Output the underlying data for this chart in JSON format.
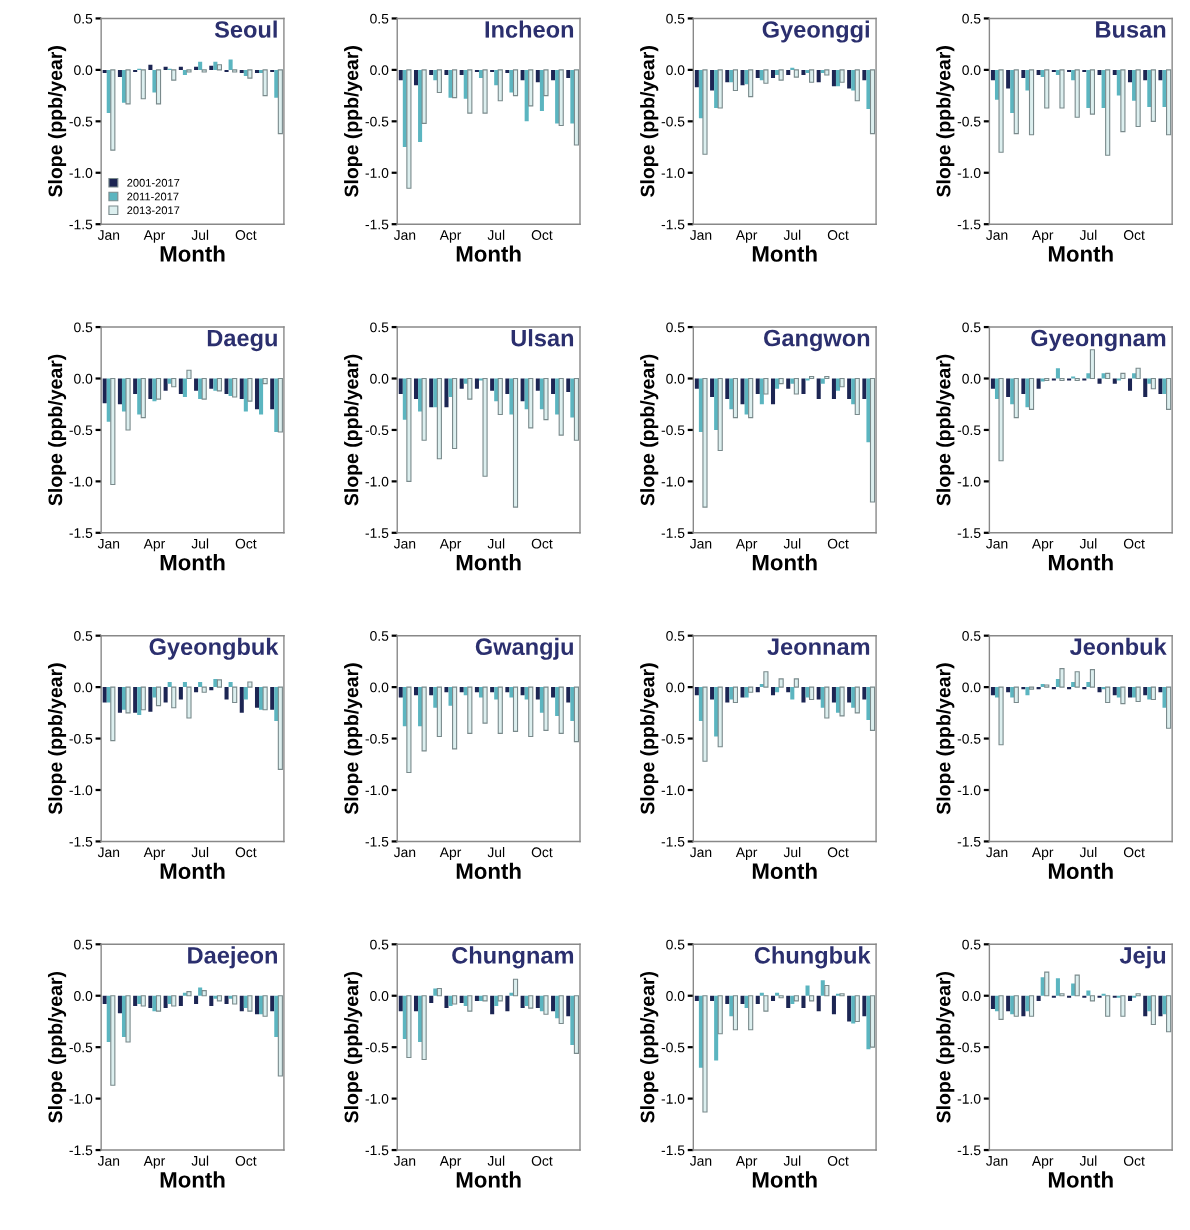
{
  "chart_data": [
    {
      "type": "bar",
      "title": "Seoul",
      "xlabel": "Month",
      "ylabel": "Slope (ppb/year)",
      "categories": [
        "Jan",
        null,
        null,
        "Apr",
        null,
        null,
        "Jul",
        null,
        null,
        "Oct",
        null,
        null
      ],
      "ylim": [
        -1.5,
        0.5
      ],
      "yticks": [
        {
          "value": -1.5,
          "label": "-1.5"
        },
        {
          "value": -1.0,
          "label": "-1.0"
        },
        {
          "value": -0.5,
          "label": "-0.5"
        },
        {
          "value": 0.0,
          "label": "0.0"
        },
        {
          "value": 0.5,
          "label": "0.5"
        }
      ],
      "legend": "bottom left",
      "series": [
        {
          "name": "2001-2017",
          "color": "#1c2553",
          "values": [
            -0.03,
            -0.07,
            -0.02,
            0.05,
            0.03,
            0.03,
            0.03,
            0.04,
            -0.02,
            -0.03,
            -0.03,
            -0.02
          ]
        },
        {
          "name": "2011-2017",
          "color": "#5bb5c0",
          "values": [
            -0.42,
            -0.32,
            0.01,
            -0.22,
            0.01,
            -0.05,
            0.08,
            0.08,
            0.1,
            -0.06,
            -0.03,
            -0.27
          ]
        },
        {
          "name": "2013-2017",
          "color": "#dcefef",
          "values": [
            -0.78,
            -0.33,
            -0.28,
            -0.33,
            -0.1,
            -0.02,
            -0.02,
            0.05,
            -0.02,
            -0.08,
            -0.25,
            -0.62
          ]
        }
      ]
    },
    {
      "type": "bar",
      "title": "Incheon",
      "xlabel": "Month",
      "ylabel": "Slope (ppb/year)",
      "categories": [
        "Jan",
        null,
        null,
        "Apr",
        null,
        null,
        "Jul",
        null,
        null,
        "Oct",
        null,
        null
      ],
      "ylim": [
        -1.5,
        0.5
      ],
      "yticks": [
        {
          "value": -1.5,
          "label": "-1.5"
        },
        {
          "value": -1.0,
          "label": "-1.0"
        },
        {
          "value": -0.5,
          "label": "-0.5"
        },
        {
          "value": 0.0,
          "label": "0.0"
        },
        {
          "value": 0.5,
          "label": "0.5"
        }
      ],
      "series": [
        {
          "color": "#1c2553",
          "values": [
            -0.1,
            -0.15,
            -0.05,
            -0.05,
            -0.05,
            -0.02,
            -0.02,
            -0.03,
            -0.1,
            -0.12,
            -0.1,
            -0.08
          ]
        },
        {
          "color": "#5bb5c0",
          "values": [
            -0.75,
            -0.7,
            -0.1,
            -0.27,
            -0.28,
            -0.08,
            -0.15,
            -0.22,
            -0.5,
            -0.4,
            -0.52,
            -0.52
          ]
        },
        {
          "color": "#dcefef",
          "values": [
            -1.15,
            -0.52,
            -0.22,
            -0.27,
            -0.42,
            -0.42,
            -0.3,
            -0.25,
            -0.35,
            -0.25,
            -0.54,
            -0.73
          ]
        }
      ]
    },
    {
      "type": "bar",
      "title": "Gyeonggi",
      "xlabel": "Month",
      "ylabel": "Slope (ppb/year)",
      "categories": [
        "Jan",
        null,
        null,
        "Apr",
        null,
        null,
        "Jul",
        null,
        null,
        "Oct",
        null,
        null
      ],
      "ylim": [
        -1.5,
        0.5
      ],
      "yticks": [
        {
          "value": -1.5,
          "label": "-1.5"
        },
        {
          "value": -1.0,
          "label": "-1.0"
        },
        {
          "value": -0.5,
          "label": "-0.5"
        },
        {
          "value": 0.0,
          "label": "0.0"
        },
        {
          "value": 0.5,
          "label": "0.5"
        }
      ],
      "series": [
        {
          "color": "#1c2553",
          "values": [
            -0.17,
            -0.2,
            -0.12,
            -0.15,
            -0.08,
            -0.08,
            -0.05,
            -0.05,
            -0.12,
            -0.16,
            -0.18,
            -0.1
          ]
        },
        {
          "color": "#5bb5c0",
          "values": [
            -0.47,
            -0.37,
            -0.12,
            -0.14,
            -0.1,
            -0.05,
            0.02,
            -0.03,
            -0.03,
            -0.16,
            -0.2,
            -0.38
          ]
        },
        {
          "color": "#dcefef",
          "values": [
            -0.82,
            -0.37,
            -0.2,
            -0.26,
            -0.13,
            -0.1,
            -0.07,
            -0.12,
            -0.05,
            -0.12,
            -0.3,
            -0.62
          ]
        }
      ]
    },
    {
      "type": "bar",
      "title": "Busan",
      "xlabel": "Month",
      "ylabel": "Slope (ppb/year)",
      "categories": [
        "Jan",
        null,
        null,
        "Apr",
        null,
        null,
        "Jul",
        null,
        null,
        "Oct",
        null,
        null
      ],
      "ylim": [
        -1.5,
        0.5
      ],
      "yticks": [
        {
          "value": -1.5,
          "label": "-1.5"
        },
        {
          "value": -1.0,
          "label": "-1.0"
        },
        {
          "value": -0.5,
          "label": "-0.5"
        },
        {
          "value": 0.0,
          "label": "0.0"
        },
        {
          "value": 0.5,
          "label": "0.5"
        }
      ],
      "series": [
        {
          "color": "#1c2553",
          "values": [
            -0.1,
            -0.18,
            -0.08,
            -0.05,
            -0.02,
            -0.02,
            -0.02,
            -0.05,
            -0.05,
            -0.12,
            -0.1,
            -0.1
          ]
        },
        {
          "color": "#5bb5c0",
          "values": [
            -0.29,
            -0.42,
            -0.2,
            -0.07,
            -0.05,
            -0.1,
            -0.37,
            -0.37,
            -0.25,
            -0.3,
            -0.36,
            -0.36
          ]
        },
        {
          "color": "#dcefef",
          "values": [
            -0.8,
            -0.62,
            -0.63,
            -0.37,
            -0.37,
            -0.46,
            -0.43,
            -0.83,
            -0.6,
            -0.55,
            -0.5,
            -0.63
          ]
        }
      ]
    },
    {
      "type": "bar",
      "title": "Daegu",
      "xlabel": "Month",
      "ylabel": "Slope (ppb/year)",
      "categories": [
        "Jan",
        null,
        null,
        "Apr",
        null,
        null,
        "Jul",
        null,
        null,
        "Oct",
        null,
        null
      ],
      "ylim": [
        -1.5,
        0.5
      ],
      "yticks": [
        {
          "value": -1.5,
          "label": "-1.5"
        },
        {
          "value": -1.0,
          "label": "-1.0"
        },
        {
          "value": -0.5,
          "label": "-0.5"
        },
        {
          "value": 0.0,
          "label": "0.0"
        },
        {
          "value": 0.5,
          "label": "0.5"
        }
      ],
      "series": [
        {
          "color": "#1c2553",
          "values": [
            -0.24,
            -0.25,
            -0.15,
            -0.2,
            -0.12,
            -0.15,
            -0.12,
            -0.1,
            -0.15,
            -0.2,
            -0.3,
            -0.3
          ]
        },
        {
          "color": "#5bb5c0",
          "values": [
            -0.42,
            -0.32,
            -0.35,
            -0.22,
            -0.05,
            -0.18,
            -0.2,
            -0.12,
            -0.17,
            -0.32,
            -0.35,
            -0.52
          ]
        },
        {
          "color": "#dcefef",
          "values": [
            -1.03,
            -0.5,
            -0.38,
            -0.2,
            -0.08,
            0.08,
            -0.2,
            -0.12,
            -0.18,
            -0.22,
            -0.05,
            -0.52
          ]
        }
      ]
    },
    {
      "type": "bar",
      "title": "Ulsan",
      "xlabel": "Month",
      "ylabel": "Slope (ppb/year)",
      "categories": [
        "Jan",
        null,
        null,
        "Apr",
        null,
        null,
        "Jul",
        null,
        null,
        "Oct",
        null,
        null
      ],
      "ylim": [
        -1.5,
        0.5
      ],
      "yticks": [
        {
          "value": -1.5,
          "label": "-1.5"
        },
        {
          "value": -1.0,
          "label": "-1.0"
        },
        {
          "value": -0.5,
          "label": "-0.5"
        },
        {
          "value": 0.0,
          "label": "0.0"
        },
        {
          "value": 0.5,
          "label": "0.5"
        }
      ],
      "series": [
        {
          "color": "#1c2553",
          "values": [
            -0.15,
            -0.2,
            -0.28,
            -0.28,
            -0.1,
            -0.1,
            -0.12,
            -0.15,
            -0.22,
            -0.12,
            -0.15,
            -0.13
          ]
        },
        {
          "color": "#5bb5c0",
          "values": [
            -0.4,
            -0.32,
            -0.28,
            -0.18,
            -0.05,
            -0.02,
            -0.22,
            -0.35,
            -0.3,
            -0.3,
            -0.35,
            -0.38
          ]
        },
        {
          "color": "#dcefef",
          "values": [
            -1.0,
            -0.6,
            -0.78,
            -0.68,
            -0.2,
            -0.95,
            -0.35,
            -1.25,
            -0.48,
            -0.4,
            -0.55,
            -0.6
          ]
        }
      ]
    },
    {
      "type": "bar",
      "title": "Gangwon",
      "xlabel": "Month",
      "ylabel": "Slope (ppb/year)",
      "categories": [
        "Jan",
        null,
        null,
        "Apr",
        null,
        null,
        "Jul",
        null,
        null,
        "Oct",
        null,
        null
      ],
      "ylim": [
        -1.5,
        0.5
      ],
      "yticks": [
        {
          "value": -1.5,
          "label": "-1.5"
        },
        {
          "value": -1.0,
          "label": "-1.0"
        },
        {
          "value": -0.5,
          "label": "-0.5"
        },
        {
          "value": 0.0,
          "label": "0.0"
        },
        {
          "value": 0.5,
          "label": "0.5"
        }
      ],
      "series": [
        {
          "color": "#1c2553",
          "values": [
            -0.1,
            -0.18,
            -0.2,
            -0.25,
            -0.15,
            -0.25,
            -0.1,
            -0.15,
            -0.2,
            -0.2,
            -0.2,
            -0.2
          ]
        },
        {
          "color": "#5bb5c0",
          "values": [
            -0.52,
            -0.5,
            -0.3,
            -0.35,
            -0.25,
            -0.1,
            -0.05,
            -0.02,
            -0.05,
            -0.12,
            -0.25,
            -0.62
          ]
        },
        {
          "color": "#dcefef",
          "values": [
            -1.25,
            -0.7,
            -0.38,
            -0.38,
            -0.15,
            -0.05,
            -0.15,
            0.02,
            0.02,
            -0.08,
            -0.35,
            -1.2
          ]
        }
      ]
    },
    {
      "type": "bar",
      "title": "Gyeongnam",
      "xlabel": "Month",
      "ylabel": "Slope (ppb/year)",
      "categories": [
        "Jan",
        null,
        null,
        "Apr",
        null,
        null,
        "Jul",
        null,
        null,
        "Oct",
        null,
        null
      ],
      "ylim": [
        -1.5,
        0.5
      ],
      "yticks": [
        {
          "value": -1.5,
          "label": "-1.5"
        },
        {
          "value": -1.0,
          "label": "-1.0"
        },
        {
          "value": -0.5,
          "label": "-0.5"
        },
        {
          "value": 0.0,
          "label": "0.0"
        },
        {
          "value": 0.5,
          "label": "0.5"
        }
      ],
      "series": [
        {
          "color": "#1c2553",
          "values": [
            -0.1,
            -0.18,
            -0.15,
            -0.1,
            -0.02,
            -0.02,
            -0.02,
            -0.05,
            -0.05,
            -0.12,
            -0.18,
            -0.15
          ]
        },
        {
          "color": "#5bb5c0",
          "values": [
            -0.2,
            -0.25,
            -0.28,
            -0.03,
            0.1,
            0.02,
            0.05,
            0.05,
            -0.02,
            0.05,
            -0.05,
            -0.15
          ]
        },
        {
          "color": "#dcefef",
          "values": [
            -0.8,
            -0.38,
            -0.3,
            -0.02,
            -0.02,
            -0.02,
            0.28,
            0.05,
            0.05,
            0.1,
            -0.1,
            -0.3
          ]
        }
      ]
    },
    {
      "type": "bar",
      "title": "Gyeongbuk",
      "xlabel": "Month",
      "ylabel": "Slope (ppb/year)",
      "categories": [
        "Jan",
        null,
        null,
        "Apr",
        null,
        null,
        "Jul",
        null,
        null,
        "Oct",
        null,
        null
      ],
      "ylim": [
        -1.5,
        0.5
      ],
      "yticks": [
        {
          "value": -1.5,
          "label": "-1.5"
        },
        {
          "value": -1.0,
          "label": "-1.0"
        },
        {
          "value": -0.5,
          "label": "-0.5"
        },
        {
          "value": 0.0,
          "label": "0.0"
        },
        {
          "value": 0.5,
          "label": "0.5"
        }
      ],
      "series": [
        {
          "color": "#1c2553",
          "values": [
            -0.15,
            -0.25,
            -0.25,
            -0.24,
            -0.15,
            -0.12,
            -0.05,
            -0.03,
            -0.12,
            -0.25,
            -0.2,
            -0.22
          ]
        },
        {
          "color": "#5bb5c0",
          "values": [
            -0.15,
            -0.22,
            -0.27,
            -0.1,
            0.05,
            0.05,
            0.05,
            0.08,
            0.05,
            -0.12,
            -0.22,
            -0.33
          ]
        },
        {
          "color": "#dcefef",
          "values": [
            -0.52,
            -0.25,
            -0.22,
            -0.18,
            -0.2,
            -0.3,
            -0.05,
            0.07,
            -0.15,
            0.05,
            -0.22,
            -0.8
          ]
        }
      ]
    },
    {
      "type": "bar",
      "title": "Gwangju",
      "xlabel": "Month",
      "ylabel": "Slope (ppb/year)",
      "categories": [
        "Jan",
        null,
        null,
        "Apr",
        null,
        null,
        "Jul",
        null,
        null,
        "Oct",
        null,
        null
      ],
      "ylim": [
        -1.5,
        0.5
      ],
      "yticks": [
        {
          "value": -1.5,
          "label": "-1.5"
        },
        {
          "value": -1.0,
          "label": "-1.0"
        },
        {
          "value": -0.5,
          "label": "-0.5"
        },
        {
          "value": 0.0,
          "label": "0.0"
        },
        {
          "value": 0.5,
          "label": "0.5"
        }
      ],
      "series": [
        {
          "color": "#1c2553",
          "values": [
            -0.1,
            -0.08,
            -0.08,
            -0.05,
            -0.05,
            -0.05,
            -0.05,
            -0.05,
            -0.08,
            -0.12,
            -0.1,
            -0.15
          ]
        },
        {
          "color": "#5bb5c0",
          "values": [
            -0.38,
            -0.38,
            -0.2,
            -0.18,
            -0.08,
            -0.1,
            -0.12,
            -0.1,
            -0.12,
            -0.25,
            -0.28,
            -0.33
          ]
        },
        {
          "color": "#dcefef",
          "values": [
            -0.83,
            -0.62,
            -0.48,
            -0.6,
            -0.45,
            -0.35,
            -0.45,
            -0.43,
            -0.48,
            -0.42,
            -0.45,
            -0.53
          ]
        }
      ]
    },
    {
      "type": "bar",
      "title": "Jeonnam",
      "xlabel": "Month",
      "ylabel": "Slope (ppb/year)",
      "categories": [
        "Jan",
        null,
        null,
        "Apr",
        null,
        null,
        "Jul",
        null,
        null,
        "Oct",
        null,
        null
      ],
      "ylim": [
        -1.5,
        0.5
      ],
      "yticks": [
        {
          "value": -1.5,
          "label": "-1.5"
        },
        {
          "value": -1.0,
          "label": "-1.0"
        },
        {
          "value": -0.5,
          "label": "-0.5"
        },
        {
          "value": 0.0,
          "label": "0.0"
        },
        {
          "value": 0.5,
          "label": "0.5"
        }
      ],
      "series": [
        {
          "color": "#1c2553",
          "values": [
            -0.08,
            -0.12,
            -0.15,
            -0.1,
            -0.05,
            -0.08,
            -0.05,
            -0.15,
            -0.12,
            -0.15,
            -0.15,
            -0.12
          ]
        },
        {
          "color": "#5bb5c0",
          "values": [
            -0.33,
            -0.48,
            -0.12,
            -0.1,
            0.03,
            -0.05,
            -0.12,
            -0.1,
            -0.2,
            -0.25,
            -0.2,
            -0.32
          ]
        },
        {
          "color": "#dcefef",
          "values": [
            -0.72,
            -0.58,
            -0.15,
            -0.05,
            0.15,
            0.08,
            0.08,
            -0.12,
            -0.3,
            -0.28,
            -0.25,
            -0.42
          ]
        }
      ]
    },
    {
      "type": "bar",
      "title": "Jeonbuk",
      "xlabel": "Month",
      "ylabel": "Slope (ppb/year)",
      "categories": [
        "Jan",
        null,
        null,
        "Apr",
        null,
        null,
        "Jul",
        null,
        null,
        "Oct",
        null,
        null
      ],
      "ylim": [
        -1.5,
        0.5
      ],
      "yticks": [
        {
          "value": -1.5,
          "label": "-1.5"
        },
        {
          "value": -1.0,
          "label": "-1.0"
        },
        {
          "value": -0.5,
          "label": "-0.5"
        },
        {
          "value": 0.0,
          "label": "0.0"
        },
        {
          "value": 0.5,
          "label": "0.5"
        }
      ],
      "series": [
        {
          "color": "#1c2553",
          "values": [
            -0.08,
            -0.05,
            -0.02,
            -0.02,
            -0.02,
            -0.02,
            -0.02,
            -0.05,
            -0.08,
            -0.1,
            -0.08,
            -0.05
          ]
        },
        {
          "color": "#5bb5c0",
          "values": [
            -0.1,
            -0.1,
            -0.08,
            0.03,
            0.08,
            0.05,
            0.05,
            -0.02,
            -0.1,
            -0.1,
            -0.12,
            -0.2
          ]
        },
        {
          "color": "#dcefef",
          "values": [
            -0.56,
            -0.15,
            -0.02,
            0.02,
            0.18,
            0.15,
            0.17,
            -0.15,
            -0.16,
            -0.14,
            -0.12,
            -0.4
          ]
        }
      ]
    },
    {
      "type": "bar",
      "title": "Daejeon",
      "xlabel": "Month",
      "ylabel": "Slope (ppb/year)",
      "categories": [
        "Jan",
        null,
        null,
        "Apr",
        null,
        null,
        "Jul",
        null,
        null,
        "Oct",
        null,
        null
      ],
      "ylim": [
        -1.5,
        0.5
      ],
      "yticks": [
        {
          "value": -1.5,
          "label": "-1.5"
        },
        {
          "value": -1.0,
          "label": "-1.0"
        },
        {
          "value": -0.5,
          "label": "-0.5"
        },
        {
          "value": 0.0,
          "label": "0.0"
        },
        {
          "value": 0.5,
          "label": "0.5"
        }
      ],
      "series": [
        {
          "color": "#1c2553",
          "values": [
            -0.08,
            -0.17,
            -0.1,
            -0.12,
            -0.12,
            -0.1,
            -0.08,
            -0.1,
            -0.08,
            -0.15,
            -0.18,
            -0.15
          ]
        },
        {
          "color": "#5bb5c0",
          "values": [
            -0.45,
            -0.4,
            -0.08,
            -0.15,
            -0.08,
            0.03,
            0.08,
            -0.03,
            -0.03,
            -0.12,
            -0.18,
            -0.4
          ]
        },
        {
          "color": "#dcefef",
          "values": [
            -0.87,
            -0.45,
            -0.1,
            -0.15,
            -0.1,
            0.04,
            0.05,
            -0.05,
            -0.08,
            -0.15,
            -0.2,
            -0.78
          ]
        }
      ]
    },
    {
      "type": "bar",
      "title": "Chungnam",
      "xlabel": "Month",
      "ylabel": "Slope (ppb/year)",
      "categories": [
        "Jan",
        null,
        null,
        "Apr",
        null,
        null,
        "Jul",
        null,
        null,
        "Oct",
        null,
        null
      ],
      "ylim": [
        -1.5,
        0.5
      ],
      "yticks": [
        {
          "value": -1.5,
          "label": "-1.5"
        },
        {
          "value": -1.0,
          "label": "-1.0"
        },
        {
          "value": -0.5,
          "label": "-0.5"
        },
        {
          "value": 0.0,
          "label": "0.0"
        },
        {
          "value": 0.5,
          "label": "0.5"
        }
      ],
      "series": [
        {
          "color": "#1c2553",
          "values": [
            -0.15,
            -0.15,
            -0.07,
            -0.12,
            -0.07,
            -0.05,
            -0.18,
            -0.15,
            -0.12,
            -0.12,
            -0.15,
            -0.2
          ]
        },
        {
          "color": "#5bb5c0",
          "values": [
            -0.42,
            -0.45,
            0.07,
            -0.1,
            -0.1,
            -0.05,
            -0.1,
            0.03,
            -0.1,
            -0.15,
            -0.22,
            -0.48
          ]
        },
        {
          "color": "#dcefef",
          "values": [
            -0.6,
            -0.62,
            0.07,
            -0.08,
            -0.15,
            -0.05,
            -0.05,
            0.16,
            -0.12,
            -0.18,
            -0.27,
            -0.56
          ]
        }
      ]
    },
    {
      "type": "bar",
      "title": "Chungbuk",
      "xlabel": "Month",
      "ylabel": "Slope (ppb/year)",
      "categories": [
        "Jan",
        null,
        null,
        "Apr",
        null,
        null,
        "Jul",
        null,
        null,
        "Oct",
        null,
        null
      ],
      "ylim": [
        -1.5,
        0.5
      ],
      "yticks": [
        {
          "value": -1.5,
          "label": "-1.5"
        },
        {
          "value": -1.0,
          "label": "-1.0"
        },
        {
          "value": -0.5,
          "label": "-0.5"
        },
        {
          "value": 0.0,
          "label": "0.0"
        },
        {
          "value": 0.5,
          "label": "0.5"
        }
      ],
      "series": [
        {
          "color": "#1c2553",
          "values": [
            -0.05,
            -0.05,
            -0.08,
            -0.08,
            -0.08,
            -0.05,
            -0.12,
            -0.12,
            -0.15,
            -0.18,
            -0.25,
            -0.2
          ]
        },
        {
          "color": "#5bb5c0",
          "values": [
            -0.7,
            -0.63,
            -0.2,
            -0.12,
            0.03,
            0.03,
            -0.08,
            0.1,
            0.15,
            0.02,
            -0.27,
            -0.52
          ]
        },
        {
          "color": "#dcefef",
          "values": [
            -1.13,
            -0.37,
            -0.33,
            -0.33,
            -0.15,
            -0.02,
            -0.05,
            -0.05,
            0.1,
            0.02,
            -0.25,
            -0.5
          ]
        }
      ]
    },
    {
      "type": "bar",
      "title": "Jeju",
      "xlabel": "Month",
      "ylabel": "Slope (ppb/year)",
      "categories": [
        "Jan",
        null,
        null,
        "Apr",
        null,
        null,
        "Jul",
        null,
        null,
        "Oct",
        null,
        null
      ],
      "ylim": [
        -1.5,
        0.5
      ],
      "yticks": [
        {
          "value": -1.5,
          "label": "-1.5"
        },
        {
          "value": -1.0,
          "label": "-1.0"
        },
        {
          "value": -0.5,
          "label": "-0.5"
        },
        {
          "value": 0.0,
          "label": "0.0"
        },
        {
          "value": 0.5,
          "label": "0.5"
        }
      ],
      "series": [
        {
          "color": "#1c2553",
          "values": [
            -0.13,
            -0.15,
            -0.2,
            -0.05,
            -0.02,
            -0.02,
            -0.02,
            -0.02,
            -0.02,
            -0.05,
            -0.2,
            -0.2
          ]
        },
        {
          "color": "#5bb5c0",
          "values": [
            -0.15,
            -0.18,
            -0.15,
            0.18,
            0.17,
            0.12,
            0.05,
            0.02,
            -0.02,
            -0.02,
            -0.15,
            -0.18
          ]
        },
        {
          "color": "#dcefef",
          "values": [
            -0.23,
            -0.2,
            -0.2,
            0.23,
            0.02,
            0.2,
            -0.05,
            -0.2,
            -0.2,
            0.02,
            -0.28,
            -0.35
          ]
        }
      ]
    }
  ]
}
